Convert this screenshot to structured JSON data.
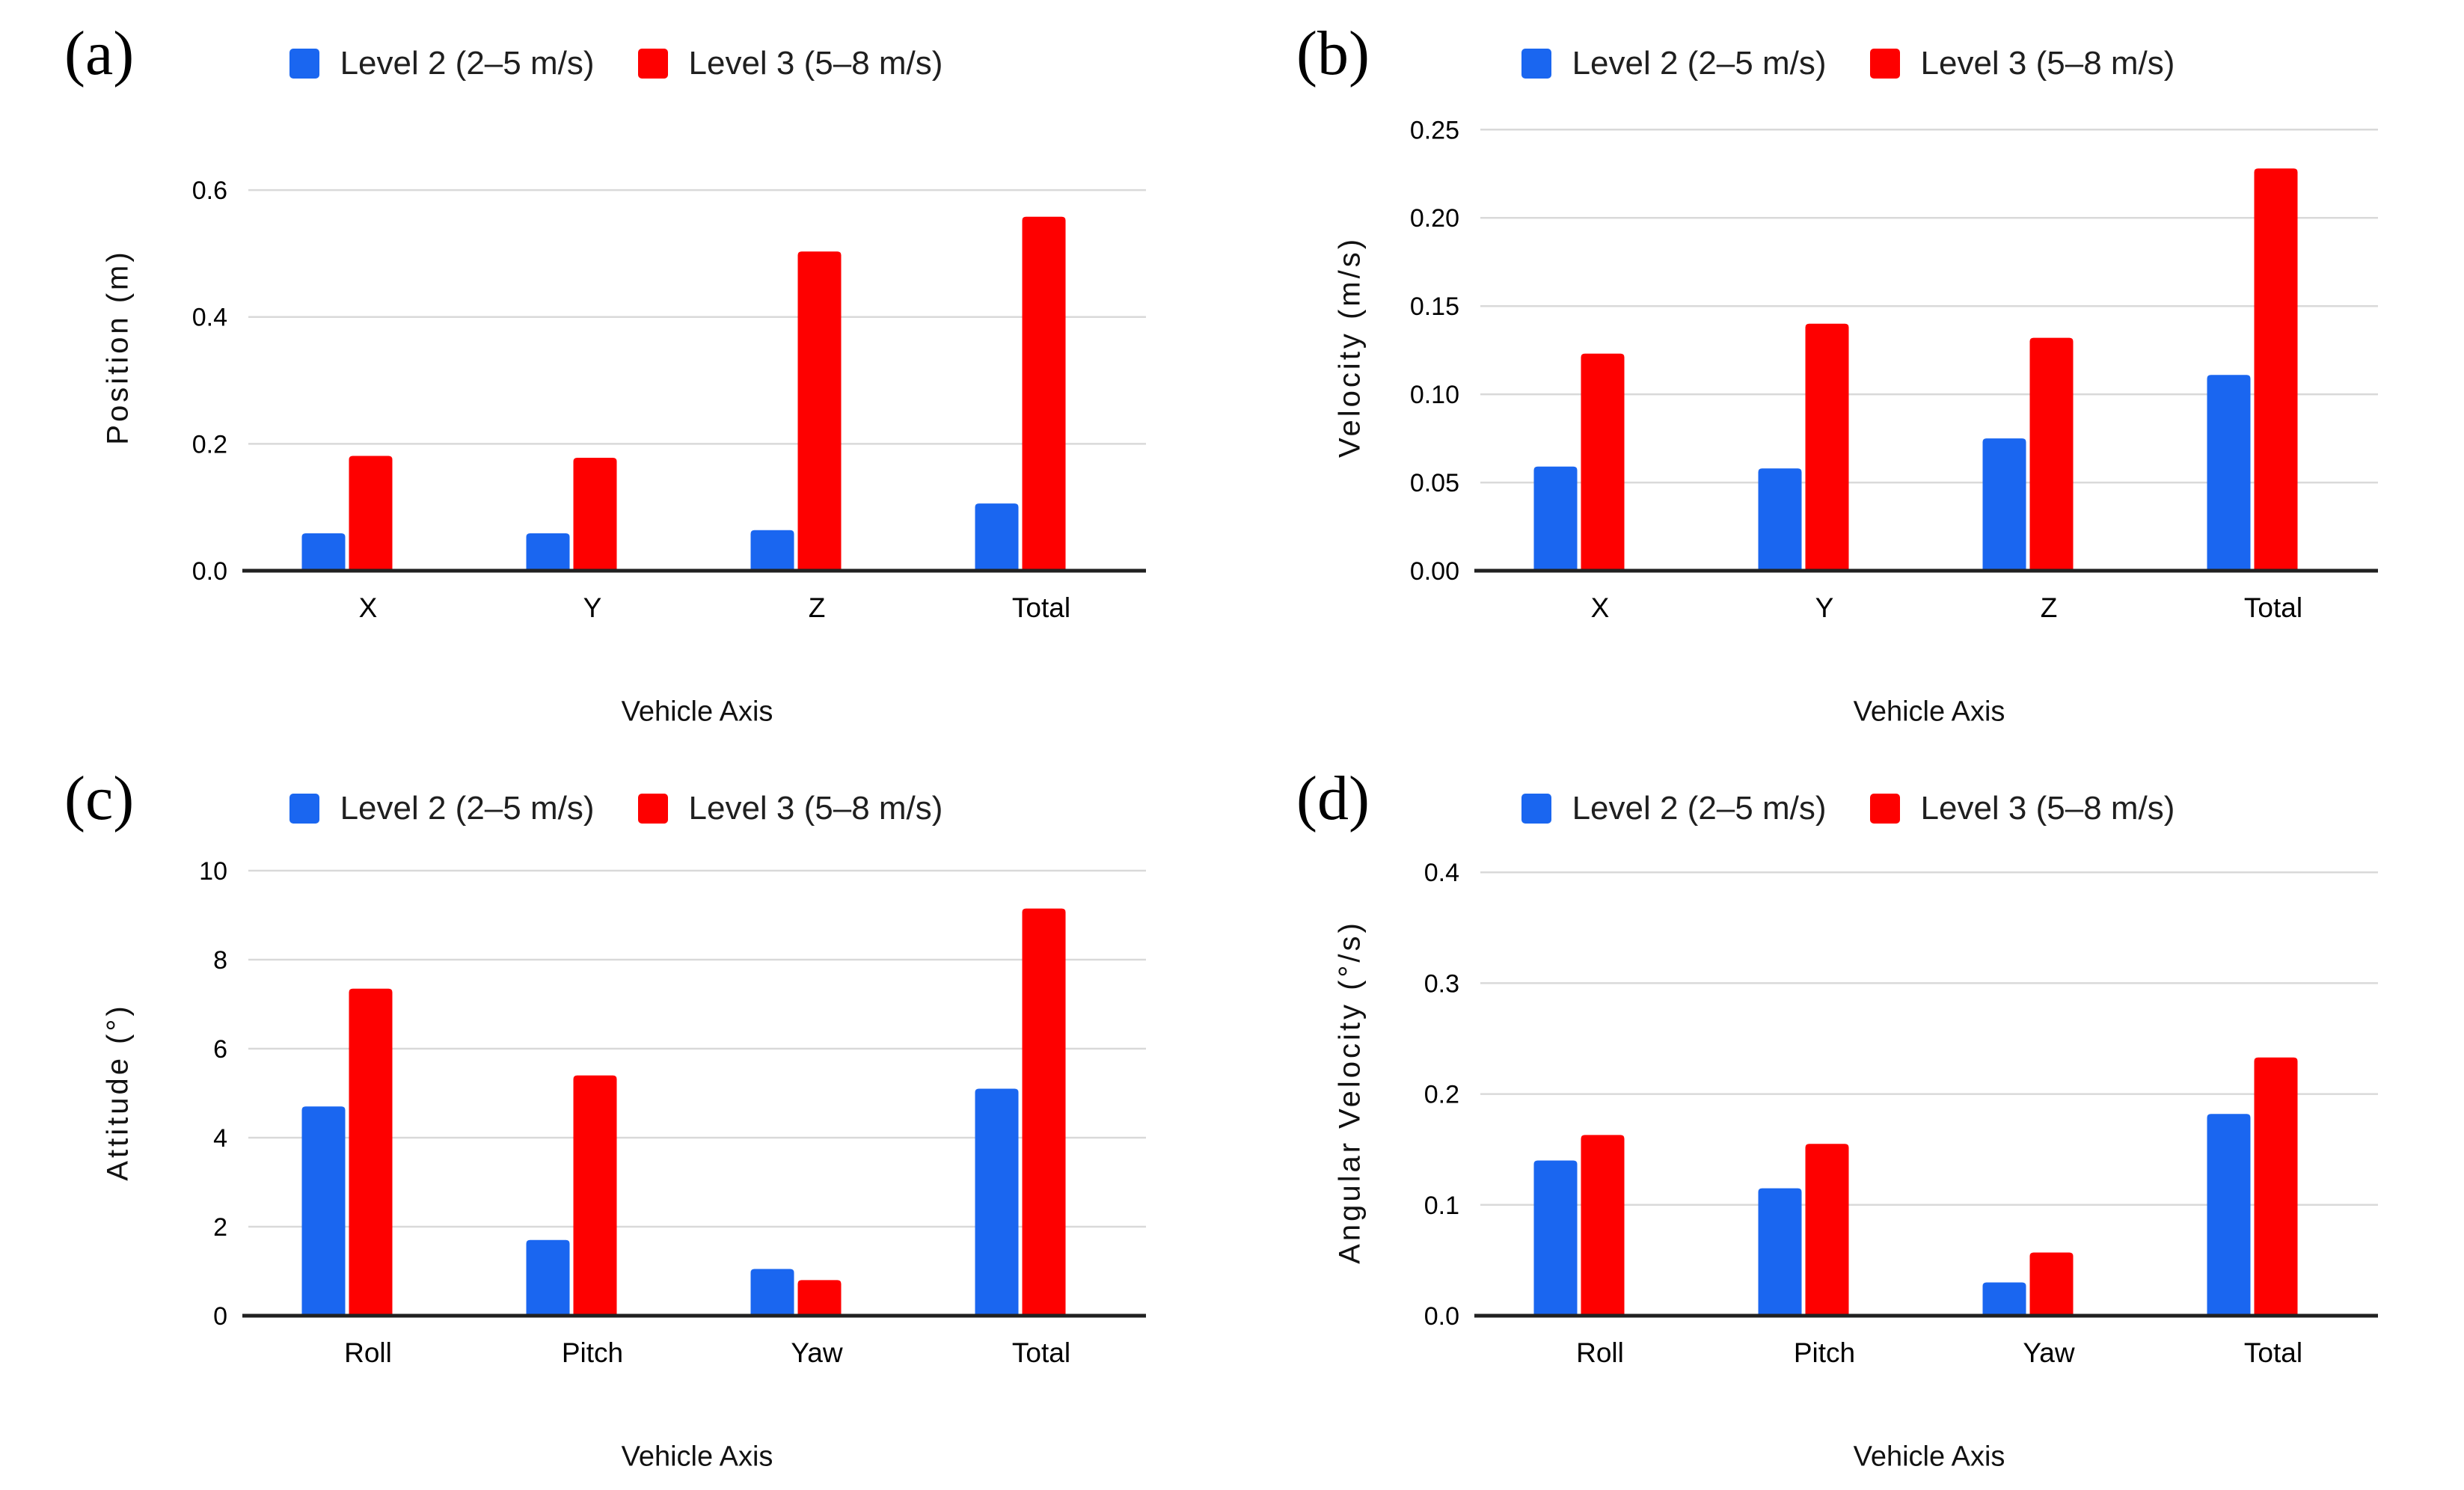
{
  "figure": {
    "background": "#ffffff"
  },
  "colors": {
    "level2_blue": "#1a66f0",
    "level3_red": "#fe0000",
    "gridline": "#d9d9d9",
    "axis_line": "#212121",
    "text": "#000000"
  },
  "panels": [
    {
      "label": "(a)",
      "chart_data": {
        "type": "bar",
        "categories": [
          "X",
          "Y",
          "Z",
          "Total"
        ],
        "series": [
          {
            "name": "Level 2 (2–5 m/s)",
            "color": "#1a66f0",
            "values": [
              0.059,
              0.059,
              0.064,
              0.106
            ]
          },
          {
            "name": "Level 3 (5–8 m/s)",
            "color": "#fe0000",
            "values": [
              0.181,
              0.178,
              0.503,
              0.558
            ]
          }
        ],
        "title": "",
        "xlabel": "Vehicle Axis",
        "ylabel": "Position (m)",
        "yticks": [
          0,
          0.2,
          0.4,
          0.6
        ],
        "ytick_labels": [
          "0.0",
          "0.2",
          "0.4",
          "0.6"
        ],
        "ylim": [
          0,
          0.705
        ],
        "grid": true,
        "legend_position": "top"
      }
    },
    {
      "label": "(b)",
      "chart_data": {
        "type": "bar",
        "categories": [
          "X",
          "Y",
          "Z",
          "Total"
        ],
        "series": [
          {
            "name": "Level 2 (2–5 m/s)",
            "color": "#1a66f0",
            "values": [
              0.059,
              0.058,
              0.075,
              0.111
            ]
          },
          {
            "name": "Level 3 (5–8 m/s)",
            "color": "#fe0000",
            "values": [
              0.123,
              0.14,
              0.132,
              0.228
            ]
          }
        ],
        "title": "",
        "xlabel": "Vehicle Axis",
        "ylabel": "Velocity (m/s)",
        "yticks": [
          0,
          0.05,
          0.1,
          0.15,
          0.2,
          0.25
        ],
        "ytick_labels": [
          "0.00",
          "0.05",
          "0.10",
          "0.15",
          "0.20",
          "0.25"
        ],
        "ylim": [
          0,
          0.2535
        ],
        "grid": true,
        "legend_position": "top"
      }
    },
    {
      "label": "(c)",
      "chart_data": {
        "type": "bar",
        "categories": [
          "Roll",
          "Pitch",
          "Yaw",
          "Total"
        ],
        "series": [
          {
            "name": "Level 2 (2–5 m/s)",
            "color": "#1a66f0",
            "values": [
              4.7,
              1.7,
              1.05,
              5.1
            ]
          },
          {
            "name": "Level 3 (5–8 m/s)",
            "color": "#fe0000",
            "values": [
              7.35,
              5.4,
              0.8,
              9.15
            ]
          }
        ],
        "title": "",
        "xlabel": "Vehicle Axis",
        "ylabel": "Attitude (°)",
        "yticks": [
          0,
          2,
          4,
          6,
          8,
          10
        ],
        "ytick_labels": [
          "0",
          "2",
          "4",
          "6",
          "8",
          "10"
        ],
        "ylim": [
          0,
          10.05
        ],
        "grid": true,
        "legend_position": "top"
      }
    },
    {
      "label": "(d)",
      "chart_data": {
        "type": "bar",
        "categories": [
          "Roll",
          "Pitch",
          "Yaw",
          "Total"
        ],
        "series": [
          {
            "name": "Level 2 (2–5 m/s)",
            "color": "#1a66f0",
            "values": [
              0.14,
              0.115,
              0.03,
              0.182
            ]
          },
          {
            "name": "Level 3 (5–8 m/s)",
            "color": "#fe0000",
            "values": [
              0.163,
              0.155,
              0.057,
              0.233
            ]
          }
        ],
        "title": "",
        "xlabel": "Vehicle Axis",
        "ylabel": "Angular Velocity (°/s)",
        "yticks": [
          0,
          0.1,
          0.2,
          0.3,
          0.4
        ],
        "ytick_labels": [
          "0.0",
          "0.1",
          "0.2",
          "0.3",
          "0.4"
        ],
        "ylim": [
          0,
          0.4035
        ],
        "grid": true,
        "legend_position": "top"
      }
    }
  ]
}
